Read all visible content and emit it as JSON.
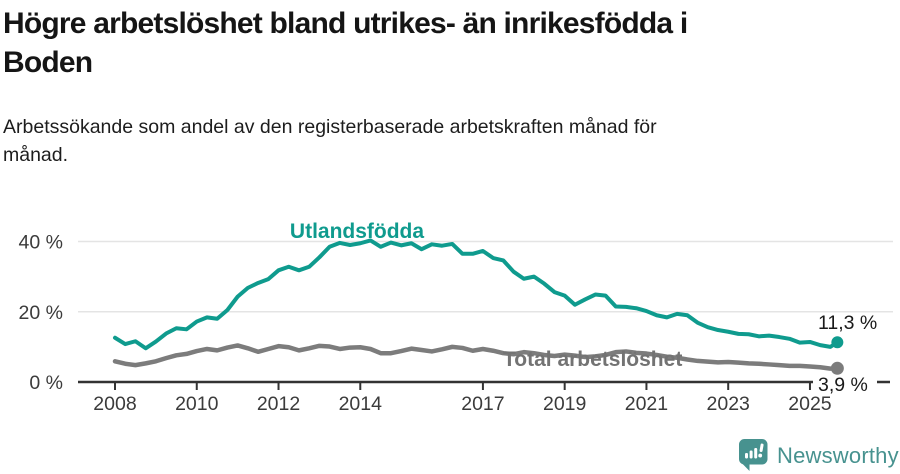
{
  "header": {
    "title_lines": [
      "Högre arbetslöshet bland utrikes- än inrikesfödda i",
      "Boden"
    ],
    "subtitle_lines": [
      "Arbetssökande som andel av den registerbaserade arbetskraften månad för",
      "månad."
    ]
  },
  "footer": {
    "brand": "Newsworthy"
  },
  "colors": {
    "accent_teal": "#0f9b8e",
    "line_gray": "#7c7c7c",
    "logo_teal": "#47928f",
    "axis": "#333333",
    "gridline": "#e4e4e4",
    "tick_text": "#3b3b3b",
    "title_text": "#151515"
  },
  "chart_data": {
    "type": "line",
    "title": "Högre arbetslöshet bland utrikes- än inrikesfödda i Boden",
    "subtitle": "Arbetssökande som andel av den registerbaserade arbetskraften månad för månad.",
    "unit": "%",
    "xlim": [
      2007.9,
      2025.9
    ],
    "ylim": [
      0,
      42
    ],
    "grid": true,
    "legend": "inline-labels",
    "x_ticks": [
      2008,
      2010,
      2012,
      2014,
      2017,
      2019,
      2021,
      2023,
      2025
    ],
    "x_tick_labels": [
      "2008",
      "2010",
      "2012",
      "2014",
      "2017",
      "2019",
      "2021",
      "2023",
      "2025"
    ],
    "y_ticks": [
      0,
      20,
      40
    ],
    "y_tick_labels": [
      "0 %",
      "20 %",
      "40 %"
    ],
    "x": [
      2008.0,
      2008.25,
      2008.5,
      2008.75,
      2009.0,
      2009.25,
      2009.5,
      2009.75,
      2010.0,
      2010.25,
      2010.5,
      2010.75,
      2011.0,
      2011.25,
      2011.5,
      2011.75,
      2012.0,
      2012.25,
      2012.5,
      2012.75,
      2013.0,
      2013.25,
      2013.5,
      2013.75,
      2014.0,
      2014.25,
      2014.5,
      2014.75,
      2015.0,
      2015.25,
      2015.5,
      2015.75,
      2016.0,
      2016.25,
      2016.5,
      2016.75,
      2017.0,
      2017.25,
      2017.5,
      2017.75,
      2018.0,
      2018.25,
      2018.5,
      2018.75,
      2019.0,
      2019.25,
      2019.5,
      2019.75,
      2020.0,
      2020.25,
      2020.5,
      2020.75,
      2021.0,
      2021.25,
      2021.5,
      2021.75,
      2022.0,
      2022.25,
      2022.5,
      2022.75,
      2023.0,
      2023.25,
      2023.5,
      2023.75,
      2024.0,
      2024.25,
      2024.5,
      2024.75,
      2025.0,
      2025.25,
      2025.5,
      2025.67
    ],
    "series": [
      {
        "name": "Utlandsfödda",
        "color": "#0f9b8e",
        "end_label": "11,3 %",
        "end_value": 11.3,
        "values": [
          12.6,
          10.8,
          11.6,
          9.6,
          11.5,
          13.8,
          15.3,
          15.0,
          17.2,
          18.4,
          18.0,
          20.5,
          24.3,
          26.8,
          28.2,
          29.3,
          31.8,
          32.8,
          31.8,
          32.8,
          35.5,
          38.5,
          39.6,
          39.0,
          39.5,
          40.3,
          38.5,
          39.7,
          38.9,
          39.5,
          37.8,
          39.2,
          38.8,
          39.3,
          36.5,
          36.5,
          37.3,
          35.3,
          34.6,
          31.4,
          29.4,
          30.0,
          28.0,
          25.6,
          24.6,
          22.0,
          23.5,
          24.9,
          24.6,
          21.5,
          21.4,
          21.0,
          20.2,
          19.0,
          18.4,
          19.4,
          19.0,
          16.9,
          15.6,
          14.8,
          14.3,
          13.7,
          13.6,
          13.0,
          13.2,
          12.8,
          12.3,
          11.2,
          11.4,
          10.5,
          10.0,
          11.3
        ]
      },
      {
        "name": "Total arbetslöshet",
        "color": "#7c7c7c",
        "end_label": "3,9 %",
        "end_value": 3.9,
        "values": [
          5.9,
          5.2,
          4.8,
          5.3,
          5.9,
          6.8,
          7.6,
          8.0,
          8.8,
          9.4,
          9.0,
          9.8,
          10.4,
          9.6,
          8.6,
          9.4,
          10.2,
          9.9,
          9.0,
          9.6,
          10.3,
          10.1,
          9.4,
          9.8,
          9.9,
          9.4,
          8.2,
          8.2,
          8.8,
          9.5,
          9.1,
          8.7,
          9.3,
          10.0,
          9.7,
          8.9,
          9.4,
          8.9,
          8.2,
          7.9,
          8.5,
          8.2,
          7.7,
          7.4,
          7.8,
          7.5,
          7.1,
          7.3,
          7.7,
          8.5,
          8.7,
          8.3,
          8.1,
          7.7,
          7.2,
          6.9,
          6.4,
          6.0,
          5.8,
          5.6,
          5.7,
          5.5,
          5.3,
          5.2,
          5.0,
          4.8,
          4.6,
          4.6,
          4.4,
          4.2,
          3.8,
          3.9
        ]
      }
    ]
  }
}
